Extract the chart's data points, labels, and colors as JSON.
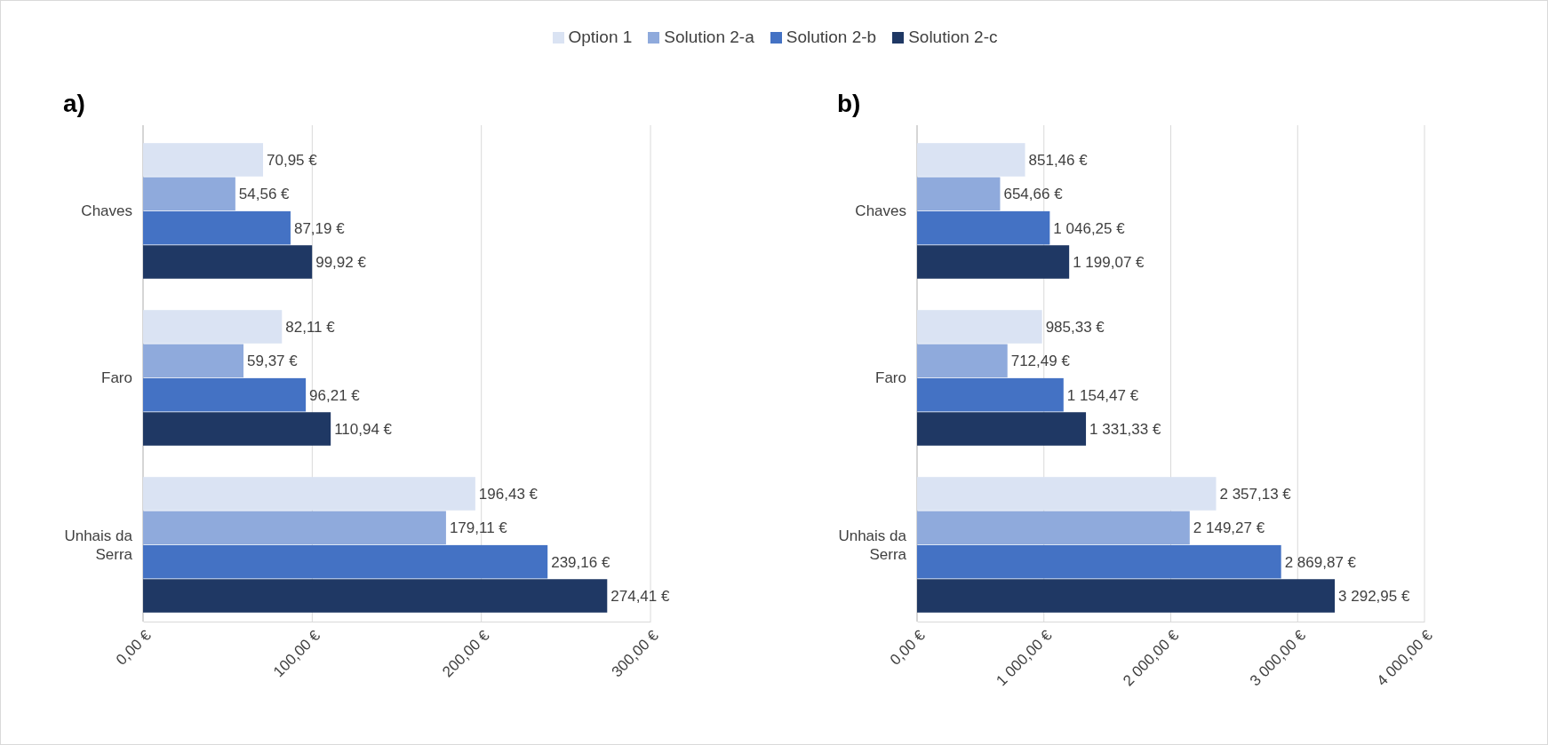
{
  "chart_data": [
    {
      "type": "bar",
      "orientation": "horizontal",
      "title": "a)",
      "categories": [
        "Chaves",
        "Faro",
        "Unhais da Serra"
      ],
      "legend": "top",
      "grid": "x",
      "xlim": [
        0,
        300
      ],
      "xticks": [
        {
          "value": 0,
          "label": "0,00 €"
        },
        {
          "value": 100,
          "label": "100,00 €"
        },
        {
          "value": 200,
          "label": "200,00 €"
        },
        {
          "value": 300,
          "label": "300,00 €"
        }
      ],
      "series": [
        {
          "name": "Option 1",
          "color": "#dae3f3",
          "values": [
            70.95,
            82.11,
            196.43
          ],
          "value_labels": [
            "70,95 €",
            "82,11 €",
            "196,43 €"
          ]
        },
        {
          "name": "Solution 2-a",
          "color": "#8faadc",
          "values": [
            54.56,
            59.37,
            179.11
          ],
          "value_labels": [
            "54,56 €",
            "59,37 €",
            "179,11 €"
          ]
        },
        {
          "name": "Solution 2-b",
          "color": "#4472c4",
          "values": [
            87.19,
            96.21,
            239.16
          ],
          "value_labels": [
            "87,19 €",
            "96,21 €",
            "239,16 €"
          ]
        },
        {
          "name": "Solution 2-c",
          "color": "#1f3864",
          "values": [
            99.92,
            110.94,
            274.41
          ],
          "value_labels": [
            "99,92 €",
            "110,94 €",
            "274,41 €"
          ]
        }
      ]
    },
    {
      "type": "bar",
      "orientation": "horizontal",
      "title": "b)",
      "categories": [
        "Chaves",
        "Faro",
        "Unhais da Serra"
      ],
      "grid": "x",
      "xlim": [
        0,
        4000
      ],
      "xticks": [
        {
          "value": 0,
          "label": "0,00 €"
        },
        {
          "value": 1000,
          "label": "1 000,00 €"
        },
        {
          "value": 2000,
          "label": "2 000,00 €"
        },
        {
          "value": 3000,
          "label": "3 000,00 €"
        },
        {
          "value": 4000,
          "label": "4 000,00 €"
        }
      ],
      "series": [
        {
          "color": "#dae3f3",
          "values": [
            851.46,
            985.33,
            2357.13
          ],
          "value_labels": [
            "851,46 €",
            "985,33 €",
            "2 357,13 €"
          ]
        },
        {
          "color": "#8faadc",
          "values": [
            654.66,
            712.49,
            2149.27
          ],
          "value_labels": [
            "654,66 €",
            "712,49 €",
            "2 149,27 €"
          ]
        },
        {
          "color": "#4472c4",
          "values": [
            1046.25,
            1154.47,
            2869.87
          ],
          "value_labels": [
            "1 046,25 €",
            "1 154,47 €",
            "2 869,87 €"
          ]
        },
        {
          "color": "#1f3864",
          "values": [
            1199.07,
            1331.33,
            3292.95
          ],
          "value_labels": [
            "1 199,07 €",
            "1 331,33 €",
            "3 292,95 €"
          ]
        }
      ]
    }
  ]
}
